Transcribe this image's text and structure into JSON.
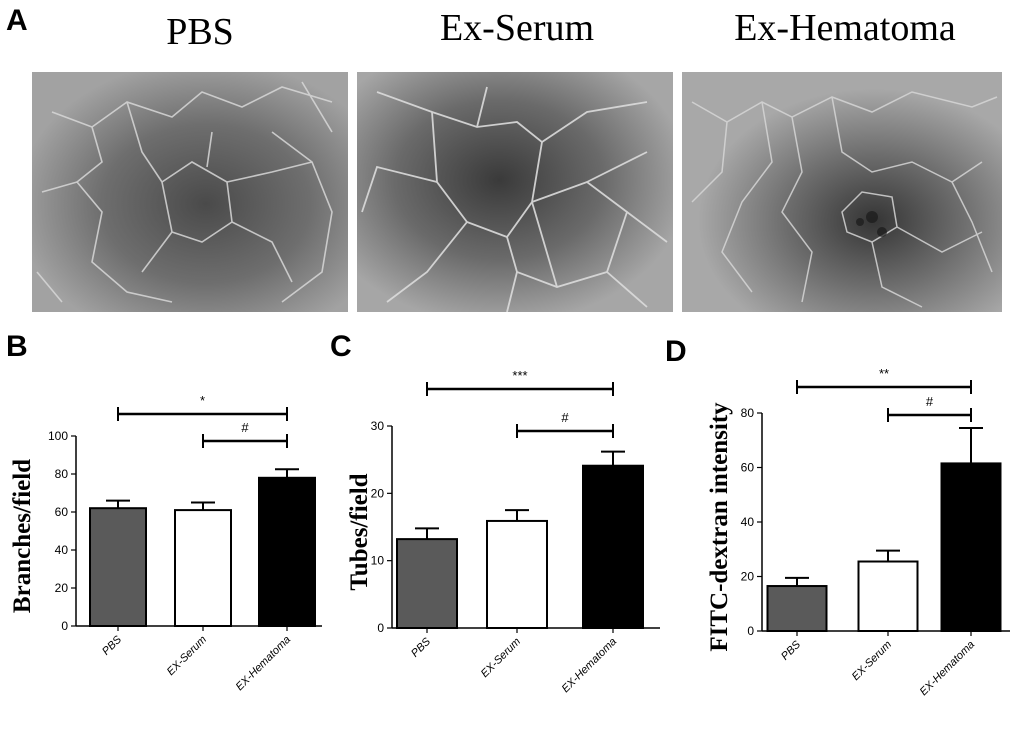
{
  "panels": {
    "A": "A",
    "B": "B",
    "C": "C",
    "D": "D"
  },
  "images": [
    {
      "title": "PBS"
    },
    {
      "title": "Ex-Serum"
    },
    {
      "title": "Ex-Hematoma"
    }
  ],
  "colors": {
    "pbs_bar": "#5a5a5a",
    "serum_bar": "#ffffff",
    "hematoma_bar": "#000000"
  },
  "chart_data": [
    {
      "type": "bar",
      "categories": [
        "PBS",
        "EX-Serum",
        "EX-Hematoma"
      ],
      "values": [
        62,
        61,
        78
      ],
      "errors": [
        4,
        4,
        4.5
      ],
      "ylabel": "Branches/field",
      "ylim": [
        0,
        100
      ],
      "yticks": [
        0,
        20,
        40,
        60,
        80,
        100
      ],
      "annotations": [
        {
          "label": "*",
          "from": 0,
          "to": 2
        },
        {
          "label": "#",
          "from": 1,
          "to": 2
        }
      ]
    },
    {
      "type": "bar",
      "categories": [
        "PBS",
        "EX-Serum",
        "EX-Hematoma"
      ],
      "values": [
        13.2,
        15.9,
        24.1
      ],
      "errors": [
        1.6,
        1.6,
        2.1
      ],
      "ylabel": "Tubes/field",
      "ylim": [
        0,
        30
      ],
      "yticks": [
        0,
        10,
        20,
        30
      ],
      "annotations": [
        {
          "label": "***",
          "from": 0,
          "to": 2
        },
        {
          "label": "#",
          "from": 1,
          "to": 2
        }
      ]
    },
    {
      "type": "bar",
      "categories": [
        "PBS",
        "EX-Serum",
        "EX-Hematoma"
      ],
      "values": [
        16.5,
        25.5,
        61.5
      ],
      "errors": [
        3,
        4,
        13
      ],
      "ylabel": "FITC-dextran intensity",
      "ylim": [
        0,
        80
      ],
      "yticks": [
        0,
        20,
        40,
        60,
        80
      ],
      "annotations": [
        {
          "label": "**",
          "from": 0,
          "to": 2
        },
        {
          "label": "#",
          "from": 1,
          "to": 2
        }
      ]
    }
  ]
}
